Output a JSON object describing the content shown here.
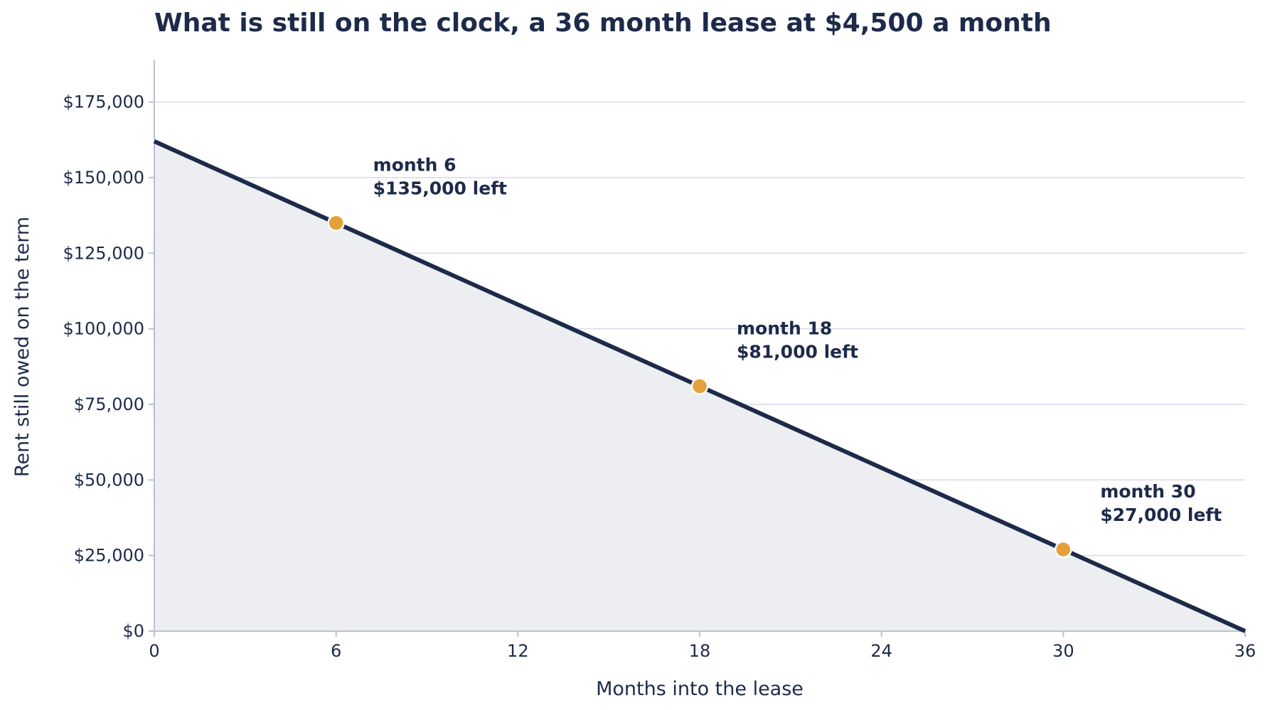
{
  "chart_data": {
    "type": "area",
    "title": "What is still on the clock, a 36 month lease at $4,500 a month",
    "xlabel": "Months into the lease",
    "ylabel": "Rent still owed on the term",
    "xlim": [
      0,
      36
    ],
    "ylim": [
      0,
      189000
    ],
    "x_ticks": [
      0,
      6,
      12,
      18,
      24,
      30,
      36
    ],
    "x_tick_labels": [
      "0",
      "6",
      "12",
      "18",
      "24",
      "30",
      "36"
    ],
    "y_ticks": [
      0,
      25000,
      50000,
      75000,
      100000,
      125000,
      150000,
      175000
    ],
    "y_tick_labels": [
      "$0",
      "$25,000",
      "$50,000",
      "$75,000",
      "$100,000",
      "$125,000",
      "$150,000",
      "$175,000"
    ],
    "grid": "horizontal",
    "series": [
      {
        "x": [
          0,
          36
        ],
        "y": [
          162000,
          0
        ],
        "color": "#1d2a4a",
        "fill": "#eceef1"
      }
    ],
    "highlighted_points": [
      {
        "x": 6,
        "y": 135000,
        "label_line1": "month 6",
        "label_line2": "$135,000 left"
      },
      {
        "x": 18,
        "y": 81000,
        "label_line1": "month 18",
        "label_line2": "$81,000 left"
      },
      {
        "x": 30,
        "y": 27000,
        "label_line1": "month 30",
        "label_line2": "$27,000 left"
      }
    ],
    "colors": {
      "line": "#1d2a4a",
      "area": "#eceef1",
      "marker": "#e6a03a",
      "grid": "#d6dae8",
      "axis": "#b8c0d4",
      "text": "#1d2a4a"
    }
  }
}
